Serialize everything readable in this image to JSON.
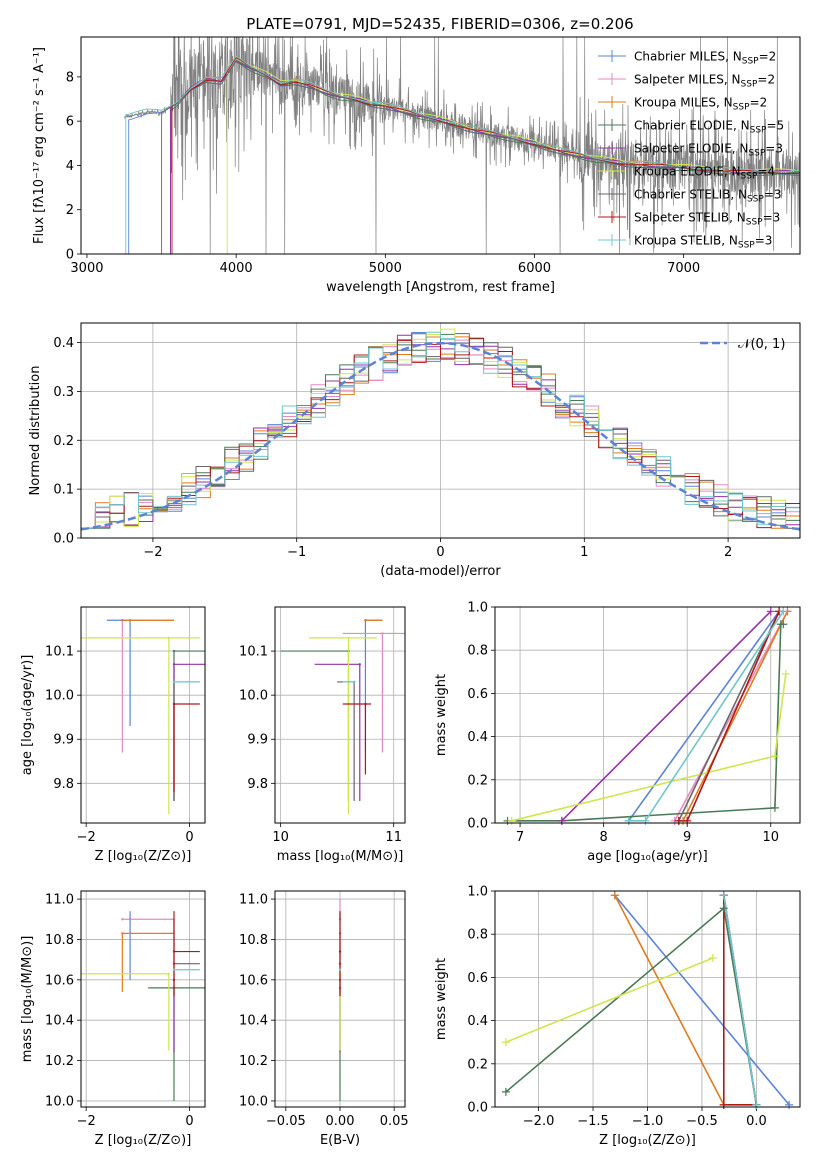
{
  "figure": {
    "title": "PLATE=0791, MJD=52435, FIBERID=0306, z=0.206"
  },
  "models": [
    {
      "name": "Chabrier MILES",
      "nssp": "2",
      "color": "#5b84d8"
    },
    {
      "name": "Salpeter MILES",
      "nssp": "2",
      "color": "#e58ac3"
    },
    {
      "name": "Kroupa MILES",
      "nssp": "2",
      "color": "#e07b1e"
    },
    {
      "name": "Chabrier ELODIE",
      "nssp": "5",
      "color": "#4a7a54"
    },
    {
      "name": "Salpeter ELODIE",
      "nssp": "3",
      "color": "#9431a8"
    },
    {
      "name": "Kroupa ELODIE",
      "nssp": "4",
      "color": "#cfe64e"
    },
    {
      "name": "Chabrier STELIB",
      "nssp": "3",
      "color": "#666666"
    },
    {
      "name": "Salpeter STELIB",
      "nssp": "3",
      "color": "#b01818"
    },
    {
      "name": "Kroupa STELIB",
      "nssp": "3",
      "color": "#6fc7c9"
    }
  ],
  "chart_data": [
    {
      "id": "spectrum",
      "type": "line",
      "xlabel": "wavelength [Angstrom, rest frame]",
      "ylabel": "Flux [fλ10⁻¹⁷ erg cm⁻² s⁻¹ A⁻¹]",
      "xlim": [
        2960,
        7780
      ],
      "ylim": [
        0,
        9.8
      ],
      "xticks": [
        3000,
        4000,
        5000,
        6000,
        7000
      ],
      "yticks": [
        0,
        2,
        4,
        6,
        8
      ],
      "grid": false,
      "legend": "right",
      "data_color": "#808080",
      "model_x": [
        3280,
        3400,
        3500,
        3600,
        3700,
        3800,
        3900,
        4000,
        4100,
        4200,
        4300,
        4400,
        4500,
        4600,
        4700,
        4800,
        4900,
        5000,
        5200,
        5400,
        5600,
        5800,
        6000,
        6200,
        6400,
        6600,
        6800,
        7000,
        7200,
        7400
      ],
      "model_y": [
        6.2,
        6.4,
        6.4,
        6.8,
        7.5,
        7.9,
        7.8,
        8.8,
        8.4,
        8.1,
        7.7,
        7.8,
        7.6,
        7.3,
        7.1,
        7.0,
        6.8,
        6.7,
        6.3,
        6.0,
        5.6,
        5.3,
        5.0,
        4.6,
        4.3,
        4.1,
        4.0,
        3.9,
        3.8,
        3.7
      ],
      "model_starts": [
        3280,
        3560,
        3560,
        3560,
        3560,
        3940,
        3500,
        3570,
        3260
      ]
    },
    {
      "id": "residuals",
      "type": "histogram",
      "xlabel": "(data-model)/error",
      "ylabel": "Normed distribution",
      "xlim": [
        -2.5,
        2.5
      ],
      "ylim": [
        0,
        0.44
      ],
      "xticks": [
        -2,
        -1,
        0,
        1,
        2
      ],
      "yticks": [
        0.0,
        0.1,
        0.2,
        0.3,
        0.4
      ],
      "grid": true,
      "legend": "top-right",
      "reference_label": "𝒩(0, 1)",
      "reference_color": "#5b84d8",
      "bin_edges_from": -2.5,
      "bin_width": 0.1
    },
    {
      "id": "age-vs-Z",
      "type": "scatter",
      "xlabel": "Z [log₁₀(Z/Z⊙)]",
      "ylabel": "age  [log₁₀(age/yr)]",
      "xlim": [
        -2.1,
        0.3
      ],
      "ylim": [
        9.71,
        10.2
      ],
      "xticks": [
        -2,
        0
      ],
      "yticks": [
        9.8,
        9.9,
        10.0,
        10.1
      ],
      "grid": true,
      "points": [
        {
          "model": 0,
          "x": -1.15,
          "y": 10.17,
          "xerr": [
            0.45,
            0.3
          ],
          "yerr": [
            0.24,
            0.0
          ]
        },
        {
          "model": 1,
          "x": -1.3,
          "y": 10.17,
          "xerr": [
            0.0,
            1.0
          ],
          "yerr": [
            0.3,
            0.0
          ]
        },
        {
          "model": 2,
          "x": -1.3,
          "y": 10.17,
          "xerr": [
            0.0,
            1.0
          ],
          "yerr": [
            0.0,
            0.0
          ]
        },
        {
          "model": 3,
          "x": -0.3,
          "y": 10.1,
          "xerr": [
            0.0,
            0.6
          ],
          "yerr": [
            0.34,
            0.0
          ]
        },
        {
          "model": 4,
          "x": -0.3,
          "y": 10.07,
          "xerr": [
            0.0,
            0.65
          ],
          "yerr": [
            0.31,
            0.0
          ]
        },
        {
          "model": 5,
          "x": -0.4,
          "y": 10.13,
          "xerr": [
            1.7,
            0.6
          ],
          "yerr": [
            0.4,
            0.0
          ]
        },
        {
          "model": 6,
          "x": -0.3,
          "y": 10.03,
          "xerr": [
            0.0,
            0.5
          ],
          "yerr": [
            0.27,
            0.0
          ]
        },
        {
          "model": 7,
          "x": -0.3,
          "y": 9.98,
          "xerr": [
            0.0,
            0.5
          ],
          "yerr": [
            0.2,
            0.0
          ]
        },
        {
          "model": 8,
          "x": -0.3,
          "y": 10.03,
          "xerr": [
            0.0,
            0.5
          ],
          "yerr": [
            0.0,
            0.0
          ]
        }
      ]
    },
    {
      "id": "age-vs-mass",
      "type": "scatter",
      "xlabel": "mass [log₁₀(M/M⊙)]",
      "ylabel": "",
      "xlim": [
        9.95,
        11.1
      ],
      "ylim": [
        9.71,
        10.2
      ],
      "xticks": [
        10,
        11
      ],
      "yticks": [
        9.8,
        9.9,
        10.0,
        10.1
      ],
      "grid": true,
      "points": [
        {
          "model": 0,
          "x": 10.75,
          "y": 10.17,
          "xerr": [
            0.0,
            0.15
          ],
          "yerr": [
            0.3,
            0.0
          ]
        },
        {
          "model": 1,
          "x": 10.9,
          "y": 10.14,
          "xerr": [
            0.35,
            0.2
          ],
          "yerr": [
            0.27,
            0.0
          ]
        },
        {
          "model": 2,
          "x": 10.75,
          "y": 10.17,
          "xerr": [
            0.0,
            0.15
          ],
          "yerr": [
            0.0,
            0.0
          ]
        },
        {
          "model": 3,
          "x": 10.6,
          "y": 10.1,
          "xerr": [
            0.6,
            0.0
          ],
          "yerr": [
            0.34,
            0.0
          ]
        },
        {
          "model": 4,
          "x": 10.7,
          "y": 10.07,
          "xerr": [
            0.4,
            0.0
          ],
          "yerr": [
            0.31,
            0.0
          ]
        },
        {
          "model": 5,
          "x": 10.6,
          "y": 10.13,
          "xerr": [
            0.35,
            0.25
          ],
          "yerr": [
            0.4,
            0.0
          ]
        },
        {
          "model": 6,
          "x": 10.65,
          "y": 10.03,
          "xerr": [
            0.15,
            0.0
          ],
          "yerr": [
            0.27,
            0.0
          ]
        },
        {
          "model": 7,
          "x": 10.75,
          "y": 9.98,
          "xerr": [
            0.2,
            0.05
          ],
          "yerr": [
            0.16,
            0.0
          ]
        },
        {
          "model": 8,
          "x": 10.65,
          "y": 10.03,
          "xerr": [
            0.1,
            0.0
          ],
          "yerr": [
            0.0,
            0.0
          ]
        }
      ]
    },
    {
      "id": "weight-vs-age",
      "type": "line",
      "xlabel": "age  [log₁₀(age/yr)]",
      "ylabel": "mass weight",
      "xlim": [
        6.7,
        10.35
      ],
      "ylim": [
        0,
        1.0
      ],
      "xticks": [
        7,
        8,
        9,
        10
      ],
      "yticks": [
        0.0,
        0.2,
        0.4,
        0.6,
        0.8,
        1.0
      ],
      "grid": true,
      "series": [
        {
          "model": 0,
          "x": [
            8.3,
            10.1
          ],
          "y": [
            0.01,
            0.98
          ]
        },
        {
          "model": 1,
          "x": [
            8.85,
            10.2
          ],
          "y": [
            0.01,
            0.98
          ]
        },
        {
          "model": 2,
          "x": [
            8.95,
            10.2
          ],
          "y": [
            0.01,
            0.98
          ]
        },
        {
          "model": 3,
          "x": [
            6.85,
            7.5,
            10.05,
            10.12,
            10.15
          ],
          "y": [
            0.01,
            0.01,
            0.07,
            0.92,
            0.92
          ]
        },
        {
          "model": 4,
          "x": [
            7.5,
            10.0
          ],
          "y": [
            0.01,
            0.98
          ]
        },
        {
          "model": 5,
          "x": [
            6.9,
            10.05,
            10.18
          ],
          "y": [
            0.01,
            0.31,
            0.69
          ]
        },
        {
          "model": 6,
          "x": [
            8.9,
            10.1
          ],
          "y": [
            0.01,
            0.98
          ]
        },
        {
          "model": 7,
          "x": [
            8.9,
            9.0,
            10.1
          ],
          "y": [
            0.01,
            0.01,
            0.98
          ]
        },
        {
          "model": 8,
          "x": [
            8.3,
            8.5,
            10.15
          ],
          "y": [
            0.01,
            0.01,
            0.98
          ]
        }
      ]
    },
    {
      "id": "mass-vs-Z",
      "type": "scatter",
      "xlabel": "Z [log₁₀(Z/Z⊙)]",
      "ylabel": "mass [log₁₀(M/M⊙)]",
      "xlim": [
        -2.1,
        0.3
      ],
      "ylim": [
        9.97,
        11.04
      ],
      "xticks": [
        -2,
        0
      ],
      "yticks": [
        10.0,
        10.2,
        10.4,
        10.6,
        10.8,
        11.0
      ],
      "grid": true,
      "points": [
        {
          "model": 0,
          "x": -1.15,
          "y": 10.9,
          "xerr": [
            0.0,
            0.0
          ],
          "yerr": [
            0.3,
            0.04
          ]
        },
        {
          "model": 1,
          "x": -1.3,
          "y": 10.9,
          "xerr": [
            0.0,
            1.0
          ],
          "yerr": [
            0.0,
            0.0
          ]
        },
        {
          "model": 2,
          "x": -1.3,
          "y": 10.83,
          "xerr": [
            0.0,
            1.0
          ],
          "yerr": [
            0.29,
            0.0
          ]
        },
        {
          "model": 3,
          "x": -0.3,
          "y": 10.56,
          "xerr": [
            0.5,
            0.6
          ],
          "yerr": [
            0.56,
            0.0
          ]
        },
        {
          "model": 4,
          "x": -0.3,
          "y": 10.6,
          "xerr": [
            0.0,
            0.0
          ],
          "yerr": [
            0.36,
            0.3
          ]
        },
        {
          "model": 5,
          "x": -0.4,
          "y": 10.63,
          "xerr": [
            1.7,
            0.0
          ],
          "yerr": [
            0.38,
            0.0
          ]
        },
        {
          "model": 6,
          "x": -0.3,
          "y": 10.68,
          "xerr": [
            0.0,
            0.5
          ],
          "yerr": [
            0.0,
            0.0
          ]
        },
        {
          "model": 7,
          "x": -0.3,
          "y": 10.74,
          "xerr": [
            0.0,
            0.5
          ],
          "yerr": [
            0.22,
            0.2
          ]
        },
        {
          "model": 8,
          "x": -0.3,
          "y": 10.65,
          "xerr": [
            0.0,
            0.5
          ],
          "yerr": [
            0.0,
            0.0
          ]
        }
      ]
    },
    {
      "id": "mass-vs-EBV",
      "type": "scatter",
      "xlabel": "E(B-V)",
      "ylabel": "",
      "xlim": [
        -0.06,
        0.06
      ],
      "ylim": [
        9.97,
        11.04
      ],
      "xticks": [
        -0.05,
        0.0,
        0.05
      ],
      "yticks": [
        10.0,
        10.2,
        10.4,
        10.6,
        10.8,
        11.0
      ],
      "grid": true,
      "points": [
        {
          "model": 0,
          "x": 0.0,
          "y": 10.9,
          "xerr": [
            0,
            0
          ],
          "yerr": [
            0.3,
            0.04
          ]
        },
        {
          "model": 1,
          "x": 0.0,
          "y": 10.9,
          "xerr": [
            0,
            0
          ],
          "yerr": [
            0.0,
            0.1
          ]
        },
        {
          "model": 2,
          "x": 0.0,
          "y": 10.83,
          "xerr": [
            0,
            0
          ],
          "yerr": [
            0.29,
            0.0
          ]
        },
        {
          "model": 3,
          "x": 0.0,
          "y": 10.56,
          "xerr": [
            0,
            0
          ],
          "yerr": [
            0.56,
            0.0
          ]
        },
        {
          "model": 4,
          "x": 0.0,
          "y": 10.6,
          "xerr": [
            0,
            0
          ],
          "yerr": [
            0.36,
            0.0
          ]
        },
        {
          "model": 5,
          "x": 0.0,
          "y": 10.63,
          "xerr": [
            0,
            0
          ],
          "yerr": [
            0.38,
            0.0
          ]
        },
        {
          "model": 6,
          "x": 0.0,
          "y": 10.68,
          "xerr": [
            0,
            0
          ],
          "yerr": [
            0.0,
            0.0
          ]
        },
        {
          "model": 7,
          "x": 0.0,
          "y": 10.74,
          "xerr": [
            0,
            0
          ],
          "yerr": [
            0.22,
            0.2
          ]
        },
        {
          "model": 8,
          "x": 0.0,
          "y": 10.65,
          "xerr": [
            0,
            0
          ],
          "yerr": [
            0.0,
            0.0
          ]
        }
      ]
    },
    {
      "id": "weight-vs-Z",
      "type": "line",
      "xlabel": "Z [log₁₀(Z/Z⊙)]",
      "ylabel": "mass weight",
      "xlim": [
        -2.4,
        0.4
      ],
      "ylim": [
        0,
        1.0
      ],
      "xticks": [
        -2.0,
        -1.5,
        -1.0,
        -0.5,
        0.0
      ],
      "yticks": [
        0.0,
        0.2,
        0.4,
        0.6,
        0.8,
        1.0
      ],
      "grid": true,
      "series": [
        {
          "model": 0,
          "x": [
            -1.3,
            0.3
          ],
          "y": [
            0.98,
            0.01
          ]
        },
        {
          "model": 1,
          "x": [
            -0.3,
            0.0
          ],
          "y": [
            0.98,
            0.01
          ]
        },
        {
          "model": 2,
          "x": [
            -1.3,
            -0.3
          ],
          "y": [
            0.98,
            0.01
          ]
        },
        {
          "model": 3,
          "x": [
            -2.3,
            -0.3,
            0.0
          ],
          "y": [
            0.07,
            0.92,
            0.01
          ]
        },
        {
          "model": 4,
          "x": [
            -0.3,
            0.0
          ],
          "y": [
            0.98,
            0.01
          ]
        },
        {
          "model": 5,
          "x": [
            -2.3,
            -0.4
          ],
          "y": [
            0.3,
            0.69
          ]
        },
        {
          "model": 6,
          "x": [
            -0.3,
            0.0
          ],
          "y": [
            0.98,
            0.01
          ]
        },
        {
          "model": 7,
          "x": [
            -0.3,
            -0.3,
            0.0
          ],
          "y": [
            0.98,
            0.01,
            0.01
          ]
        },
        {
          "model": 8,
          "x": [
            -0.3,
            0.0
          ],
          "y": [
            0.98,
            0.01
          ]
        }
      ]
    }
  ]
}
